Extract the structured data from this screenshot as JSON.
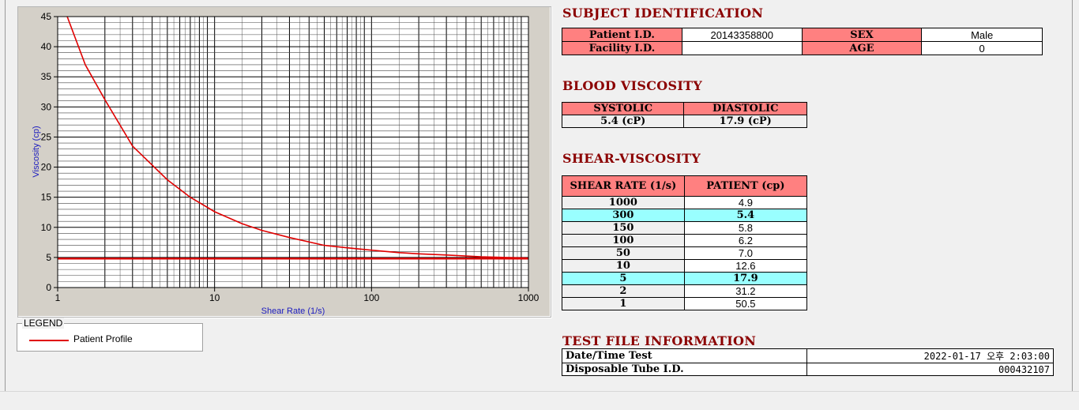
{
  "chart_data": {
    "type": "line",
    "xlabel": "Shear Rate (1/s)",
    "ylabel": "Viscosity (cp)",
    "xscale": "log",
    "xlim": [
      1,
      1000
    ],
    "ylim": [
      0,
      45
    ],
    "xticks": [
      1,
      10,
      100,
      1000
    ],
    "yticks": [
      0,
      5,
      10,
      15,
      20,
      25,
      30,
      35,
      40,
      45
    ],
    "grid": true,
    "legend": "bottom-left",
    "series": [
      {
        "name": "Patient Profile",
        "color": "#e00000",
        "x": [
          1.15,
          1.5,
          2,
          3,
          5,
          7,
          10,
          15,
          20,
          30,
          50,
          70,
          100,
          150,
          200,
          300,
          500,
          700,
          1000
        ],
        "y": [
          45,
          37,
          31.2,
          23.5,
          17.9,
          15,
          12.6,
          10.6,
          9.5,
          8.3,
          7.0,
          6.6,
          6.2,
          5.8,
          5.6,
          5.4,
          5.1,
          5.0,
          4.9
        ]
      },
      {
        "name": "",
        "color": "#e00000",
        "x": [
          1,
          1000
        ],
        "y": [
          4.8,
          4.8
        ]
      }
    ]
  },
  "legend": {
    "title": "LEGEND",
    "items": [
      {
        "label": "Patient Profile",
        "color": "#e00000"
      }
    ]
  },
  "subject": {
    "title": "SUBJECT IDENTIFICATION",
    "patient_id_label": "Patient I.D.",
    "patient_id": "20143358800",
    "sex_label": "SEX",
    "sex": "Male",
    "facility_label": "Facility I.D.",
    "facility": "",
    "age_label": "AGE",
    "age": "0"
  },
  "blood": {
    "title": "BLOOD VISCOSITY",
    "systolic_label": "SYSTOLIC",
    "diastolic_label": "DIASTOLIC",
    "systolic": "5.4 (cP)",
    "diastolic": "17.9 (cP)"
  },
  "shear": {
    "title": "SHEAR-VISCOSITY",
    "col1": "SHEAR RATE (1/s)",
    "col2": "PATIENT (cp)",
    "rows": [
      {
        "rate": "1000",
        "value": "4.9",
        "highlight": false
      },
      {
        "rate": "300",
        "value": "5.4",
        "highlight": true
      },
      {
        "rate": "150",
        "value": "5.8",
        "highlight": false
      },
      {
        "rate": "100",
        "value": "6.2",
        "highlight": false
      },
      {
        "rate": "50",
        "value": "7.0",
        "highlight": false
      },
      {
        "rate": "10",
        "value": "12.6",
        "highlight": false
      },
      {
        "rate": "5",
        "value": "17.9",
        "highlight": true
      },
      {
        "rate": "2",
        "value": "31.2",
        "highlight": false
      },
      {
        "rate": "1",
        "value": "50.5",
        "highlight": false
      }
    ]
  },
  "testfile": {
    "title": "TEST FILE INFORMATION",
    "datetime_label": "Date/Time Test",
    "datetime": "2022-01-17  오후 2:03:00",
    "tube_label": "Disposable Tube I.D.",
    "tube": "000432107"
  }
}
